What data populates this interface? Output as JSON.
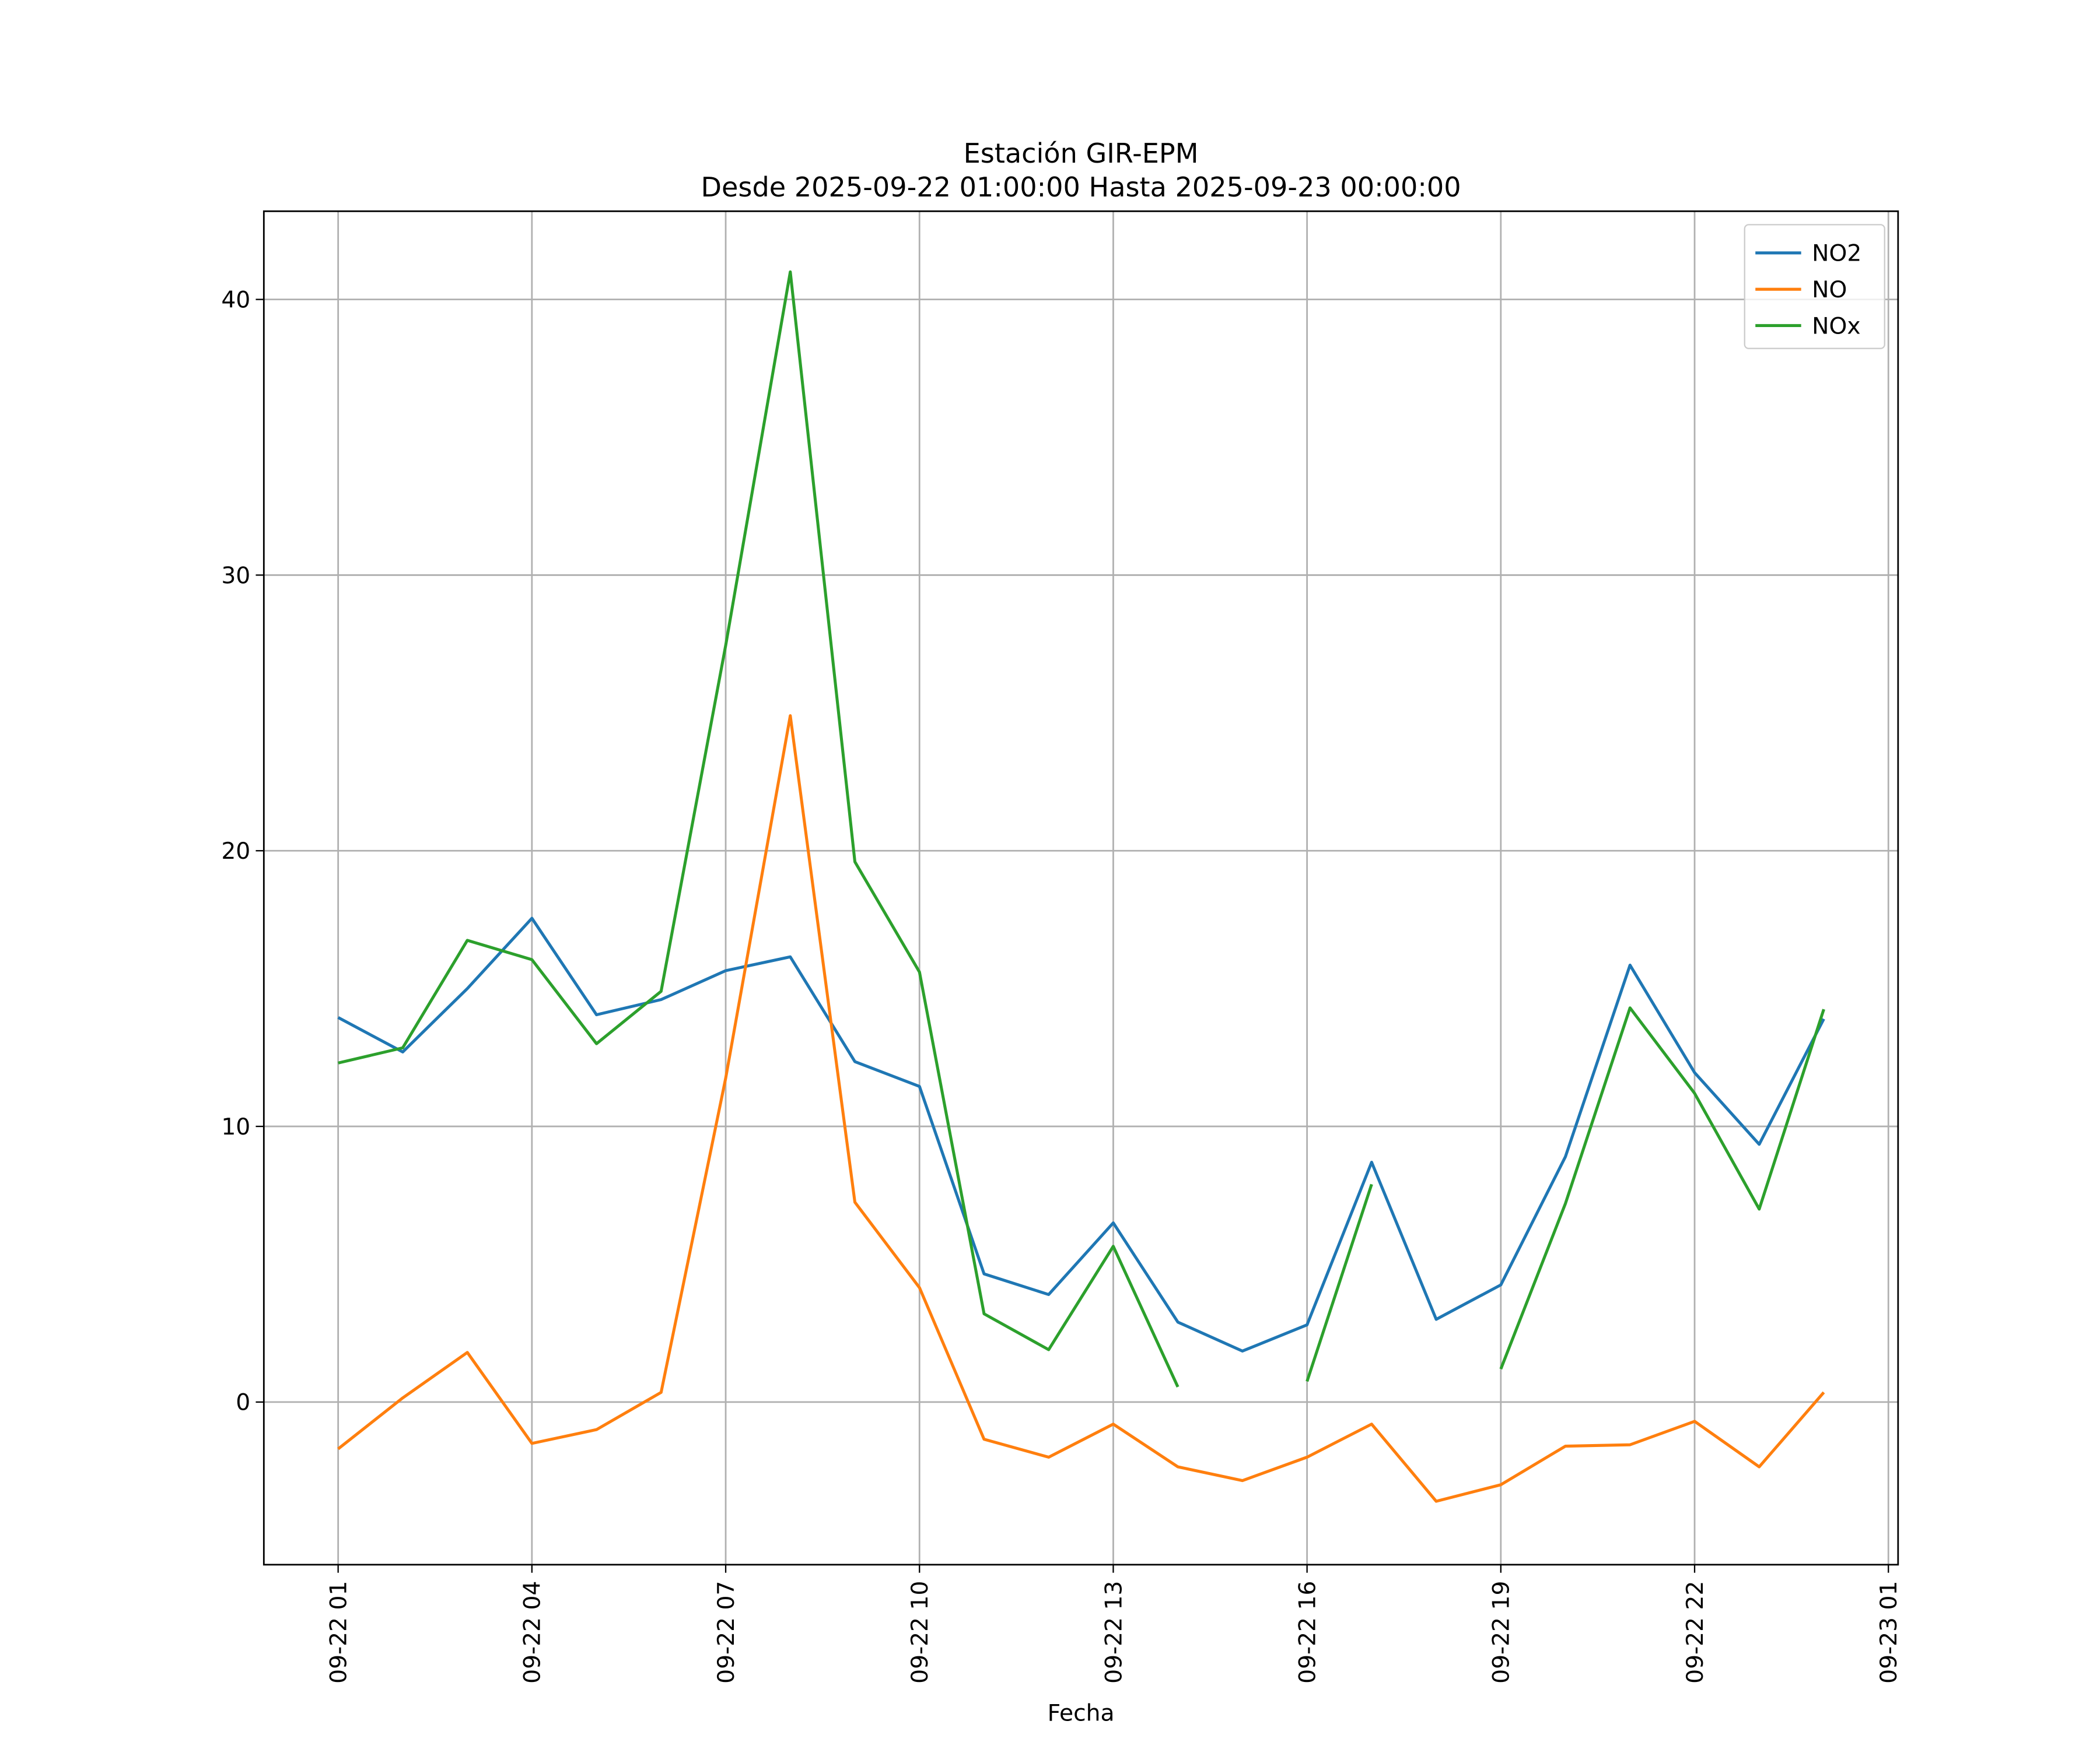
{
  "chart_data": {
    "type": "line",
    "title": "Estación GIR-EPM",
    "subtitle": "Desde 2025-09-22 01:00:00 Hasta 2025-09-23 00:00:00",
    "x_label": "Fecha",
    "x": [
      "09-22 01",
      "09-22 02",
      "09-22 03",
      "09-22 04",
      "09-22 05",
      "09-22 06",
      "09-22 07",
      "09-22 08",
      "09-22 09",
      "09-22 10",
      "09-22 11",
      "09-22 12",
      "09-22 13",
      "09-22 14",
      "09-22 15",
      "09-22 16",
      "09-22 17",
      "09-22 18",
      "09-22 19",
      "09-22 20",
      "09-22 21",
      "09-22 22",
      "09-22 23",
      "09-23 00"
    ],
    "series": [
      {
        "name": "NO2",
        "color": "#1f77b4",
        "values": [
          13.95,
          12.7,
          15.0,
          17.55,
          14.05,
          14.6,
          15.65,
          16.15,
          12.35,
          11.45,
          4.65,
          3.9,
          6.5,
          2.9,
          1.85,
          2.8,
          8.7,
          3.0,
          4.25,
          8.9,
          15.85,
          11.95,
          9.35,
          13.9
        ]
      },
      {
        "name": "NO",
        "color": "#ff7f0e",
        "values": [
          -1.7,
          0.15,
          1.8,
          -1.5,
          -1.0,
          0.35,
          11.75,
          24.9,
          7.25,
          4.15,
          -1.35,
          -2.0,
          -0.8,
          -2.35,
          -2.85,
          -2.0,
          -0.8,
          -3.6,
          -3.0,
          -1.6,
          -1.55,
          -0.7,
          -2.35,
          0.35
        ]
      },
      {
        "name": "NOx",
        "color": "#2ca02c",
        "values": [
          12.3,
          12.85,
          16.75,
          16.05,
          13.0,
          14.9,
          27.45,
          41.0,
          19.6,
          15.6,
          3.2,
          1.9,
          5.65,
          0.55,
          null,
          0.75,
          7.9,
          null,
          1.2,
          7.2,
          14.3,
          11.2,
          7.0,
          14.25
        ]
      }
    ],
    "xlim": [
      "09-21 23:51",
      "09-23 01:09"
    ],
    "xticks": [
      "09-22 01",
      "09-22 04",
      "09-22 07",
      "09-22 10",
      "09-22 13",
      "09-22 16",
      "09-22 19",
      "09-22 22",
      "09-23 01"
    ],
    "ylim": [
      -5.9,
      43.2
    ],
    "yticks": [
      0,
      10,
      20,
      30,
      40
    ],
    "grid": true,
    "legend": "upper right"
  }
}
